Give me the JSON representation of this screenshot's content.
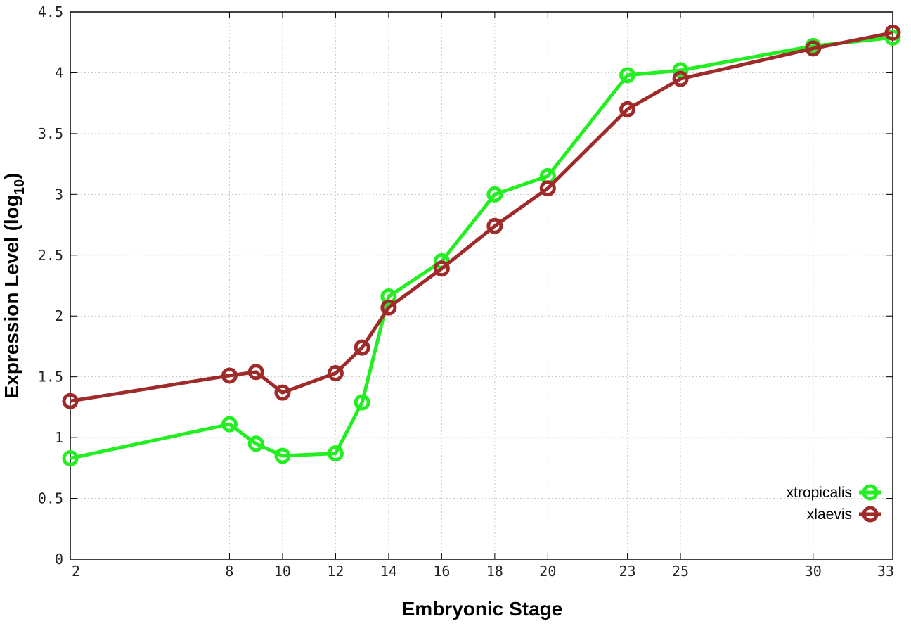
{
  "chart_data": {
    "type": "line",
    "title": "",
    "xlabel": "Embryonic Stage",
    "ylabel_main": "Expression Level (log",
    "ylabel_sub": "10",
    "ylabel_close": ")",
    "xlim": [
      2,
      33
    ],
    "ylim": [
      0,
      4.5
    ],
    "xticks": [
      2,
      8,
      10,
      12,
      14,
      16,
      18,
      20,
      23,
      25,
      30,
      33
    ],
    "xtick_labels": [
      "2",
      "8",
      "10",
      "12",
      "14",
      "16",
      "18",
      "20",
      "23",
      "25",
      "30",
      "33"
    ],
    "yticks": [
      0,
      0.5,
      1,
      1.5,
      2,
      2.5,
      3,
      3.5,
      4,
      4.5
    ],
    "ytick_labels": [
      "0",
      "0.5",
      "1",
      "1.5",
      "2",
      "2.5",
      "3",
      "3.5",
      "4",
      "4.5"
    ],
    "grid": true,
    "legend_position": "bottom-right",
    "x": [
      2,
      8,
      9,
      10,
      12,
      13,
      14,
      16,
      18,
      20,
      23,
      25,
      30,
      33
    ],
    "series": [
      {
        "name": "xtropicalis",
        "color": "#22ee22",
        "values": [
          0.83,
          1.11,
          0.95,
          0.85,
          0.87,
          1.29,
          2.16,
          2.45,
          3.0,
          3.15,
          3.98,
          4.02,
          4.22,
          4.29
        ]
      },
      {
        "name": "xlaevis",
        "color": "#9e2a2a",
        "values": [
          1.3,
          1.51,
          1.54,
          1.37,
          1.53,
          1.74,
          2.07,
          2.39,
          2.74,
          3.05,
          3.7,
          3.95,
          4.2,
          4.33
        ]
      }
    ]
  }
}
